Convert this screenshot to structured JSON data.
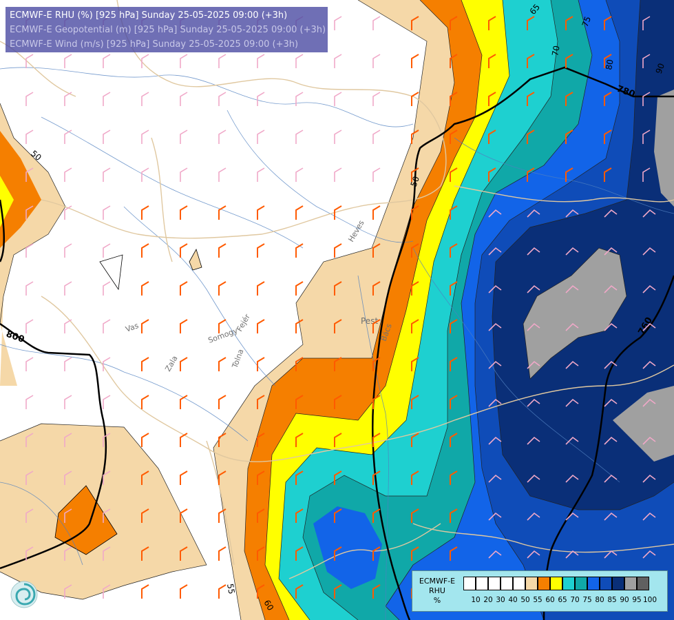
{
  "header": {
    "line1": "ECMWF-E RHU (%) [925 hPa] Sunday 25-05-2025 09:00 (+3h)",
    "line2": "ECMWF-E Geopotential (m) [925 hPa] Sunday 25-05-2025 09:00 (+3h)",
    "line3": "ECMWF-E Wind (m/s) [925 hPa] Sunday 25-05-2025 09:00 (+3h)",
    "line1_color": "#ffffff",
    "line2_color": "#c8c8e8",
    "line3_color": "#c8c8e8"
  },
  "map": {
    "contour_labels_rhu": [
      "50",
      "50",
      "55",
      "60",
      "65",
      "70",
      "75",
      "80",
      "90"
    ],
    "contour_labels_geopotential": [
      "800",
      "780",
      "760"
    ],
    "place_labels": [
      "Pest",
      "Heves",
      "Vas",
      "Zala",
      "Somogy",
      "Tolna",
      "Fejér",
      "Bács"
    ]
  },
  "legend": {
    "title_lines": [
      "ECMWF-E",
      "RHU",
      "%"
    ],
    "ticks": [
      "10",
      "20",
      "30",
      "40",
      "50",
      "55",
      "60",
      "65",
      "70",
      "75",
      "80",
      "85",
      "90",
      "95",
      "100"
    ],
    "colors": [
      "#ffffff",
      "#ffffff",
      "#ffffff",
      "#ffffff",
      "#ffffff",
      "#f5d8a8",
      "#f57f00",
      "#ffff00",
      "#1ed0d0",
      "#10a8a8",
      "#1264e8",
      "#0f4cb8",
      "#0a2f78",
      "#a0a0a0",
      "#606060"
    ],
    "background": "#a3e6ee"
  },
  "colors": {
    "band_55": "#f5d8a8",
    "band_60": "#f57f00",
    "band_65": "#ffff00",
    "band_70": "#1ed0d0",
    "band_75": "#10a8a8",
    "band_80": "#1264e8",
    "band_85": "#0f4cb8",
    "band_90": "#0a2f78",
    "band_95": "#a0a0a0",
    "wind_light": "#f0a8c8",
    "wind_strong": "#ff5a00",
    "geopotential": "#000000",
    "rivers": "#5080c0",
    "borders": "#e0c8a0"
  }
}
